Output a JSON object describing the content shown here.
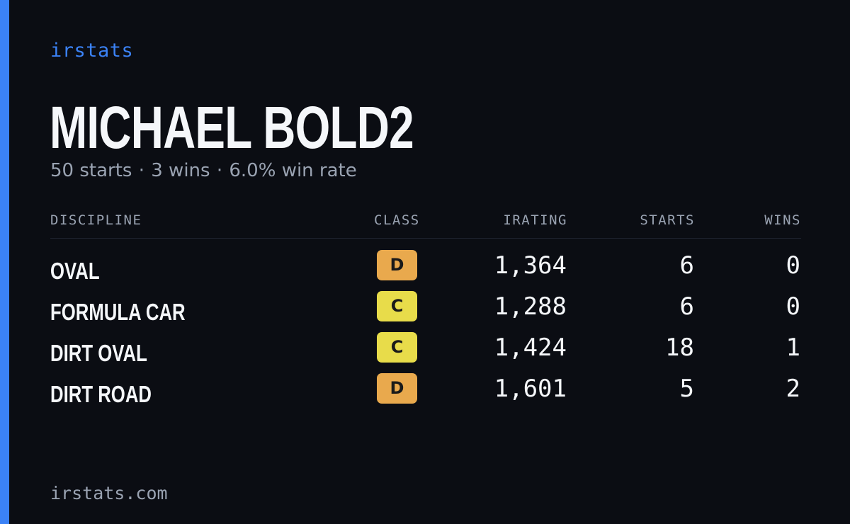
{
  "brand": "irstats",
  "driver": {
    "name": "MICHAEL BOLD2",
    "summary": {
      "starts": "50 starts",
      "wins": "3 wins",
      "win_rate": "6.0% win rate",
      "separator": "·"
    }
  },
  "table": {
    "headers": {
      "discipline": "DISCIPLINE",
      "class": "CLASS",
      "irating": "IRATING",
      "starts": "STARTS",
      "wins": "WINS"
    },
    "rows": [
      {
        "discipline": "OVAL",
        "class": "D",
        "class_color": "#e9a94d",
        "irating": "1,364",
        "starts": "6",
        "wins": "0"
      },
      {
        "discipline": "FORMULA CAR",
        "class": "C",
        "class_color": "#e8dc4a",
        "irating": "1,288",
        "starts": "6",
        "wins": "0"
      },
      {
        "discipline": "DIRT OVAL",
        "class": "C",
        "class_color": "#e8dc4a",
        "irating": "1,424",
        "starts": "18",
        "wins": "1"
      },
      {
        "discipline": "DIRT ROAD",
        "class": "D",
        "class_color": "#e9a94d",
        "irating": "1,601",
        "starts": "5",
        "wins": "2"
      }
    ]
  },
  "footer": {
    "url": "irstats.com"
  },
  "colors": {
    "background": "#0b0d13",
    "accent": "#3b82f6",
    "muted_text": "#9aa3b2",
    "primary_text": "#f5f7fa"
  }
}
